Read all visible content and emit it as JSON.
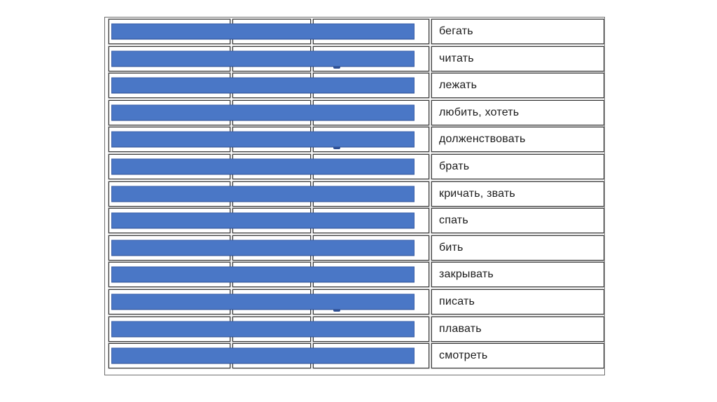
{
  "slide": {
    "background": "#ffffff",
    "description_labels": {
      "covered_cell": "",
      "table_name": "verb-quiz-table"
    }
  },
  "table": {
    "columns": [
      {
        "name": "covered-column-1",
        "content_visible": false
      },
      {
        "name": "covered-column-2",
        "content_visible": false
      },
      {
        "name": "covered-column-3",
        "content_visible": false
      },
      {
        "name": "verb-column",
        "content_visible": true
      }
    ],
    "rows": [
      {
        "verb": "бегать",
        "covered": true,
        "descender_visible": false
      },
      {
        "verb": "читать",
        "covered": true,
        "descender_visible": true
      },
      {
        "verb": "лежать",
        "covered": true,
        "descender_visible": false
      },
      {
        "verb": "любить, хотеть",
        "covered": true,
        "descender_visible": false
      },
      {
        "verb": "долженствовать",
        "covered": true,
        "descender_visible": true
      },
      {
        "verb": "брать",
        "covered": true,
        "descender_visible": false
      },
      {
        "verb": "кричать, звать",
        "covered": true,
        "descender_visible": false
      },
      {
        "verb": "спать",
        "covered": true,
        "descender_visible": false
      },
      {
        "verb": "бить",
        "covered": true,
        "descender_visible": false
      },
      {
        "verb": "закрывать",
        "covered": true,
        "descender_visible": false
      },
      {
        "verb": "писать",
        "covered": true,
        "descender_visible": true
      },
      {
        "verb": "плавать",
        "covered": true,
        "descender_visible": false
      },
      {
        "verb": "смотреть",
        "covered": true,
        "descender_visible": false
      }
    ],
    "colors": {
      "bar_fill": "#4a77c6",
      "bar_border": "#3a5fa8",
      "cell_border": "#3a3a3a",
      "frame_border": "#6e6e6e",
      "text": "#1c1c1c"
    }
  }
}
